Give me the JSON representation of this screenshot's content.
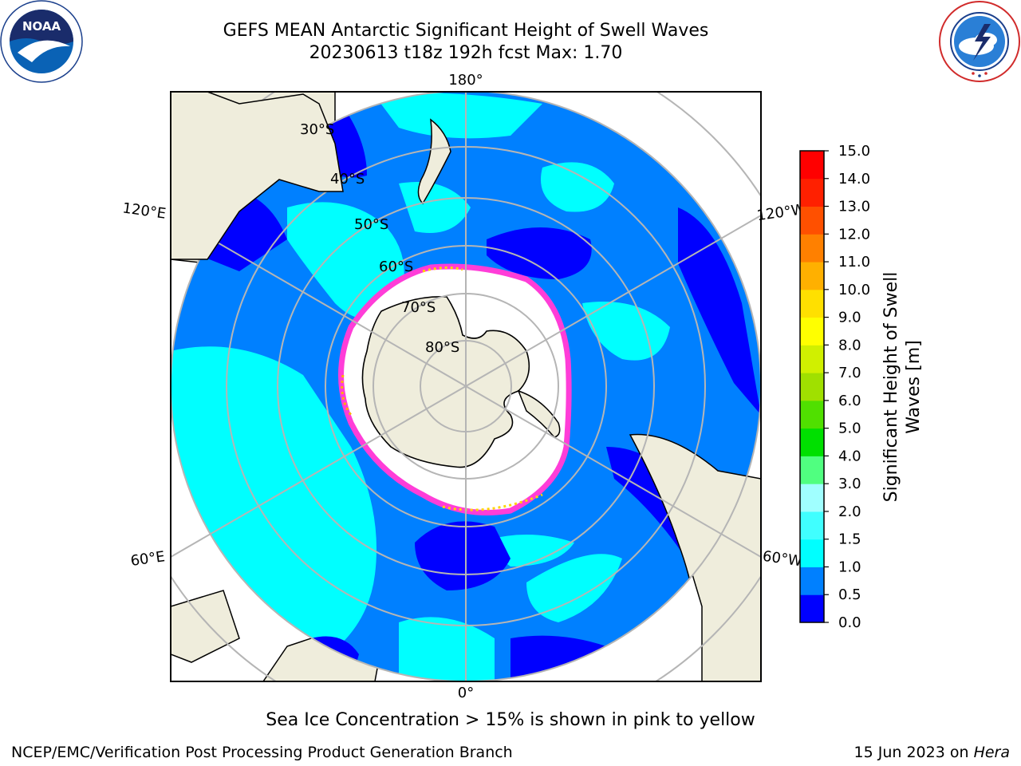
{
  "title": {
    "line1": "GEFS MEAN Antarctic Significant Height of Swell Waves",
    "line2": "20230613 t18z 192h fcst   Max: 1.70"
  },
  "logos": {
    "left": {
      "icon": "noaa-logo",
      "label": "NOAA",
      "ring_text": "NATIONAL OCEANIC AND ATMOSPHERIC ADMINISTRATION · U.S. DEPARTMENT OF COMMERCE"
    },
    "right": {
      "icon": "nws-logo",
      "ring_text": "NATIONAL WEATHER SERVICE"
    }
  },
  "map": {
    "projection": "south-polar-stereographic",
    "longitude_labels": [
      "180°",
      "120°E",
      "120°W",
      "60°E",
      "60°W",
      "0°"
    ],
    "latitude_labels": [
      "30°S",
      "40°S",
      "50°S",
      "60°S",
      "70°S",
      "80°S"
    ],
    "colors": {
      "land": "#efeddc",
      "sea_ice_open": "#ffffff",
      "ice_edge": "#ff3dd8",
      "gridlines": "#b5b5b5",
      "coastline": "#000000"
    }
  },
  "colorbar": {
    "label_line1": "Significant Height of Swell",
    "label_line2": "Waves [m]",
    "ticks": [
      "0.0",
      "0.5",
      "1.0",
      "1.5",
      "2.0",
      "3.0",
      "4.0",
      "5.0",
      "6.0",
      "7.0",
      "8.0",
      "9.0",
      "10.0",
      "11.0",
      "12.0",
      "13.0",
      "14.0",
      "15.0"
    ],
    "colors": [
      "#0000ff",
      "#0080ff",
      "#00ffff",
      "#40ffff",
      "#a0ffff",
      "#50ff80",
      "#00e000",
      "#50e000",
      "#a0e000",
      "#d0f000",
      "#ffff00",
      "#ffe000",
      "#ffb000",
      "#ff8000",
      "#ff5000",
      "#ff2000",
      "#ff0000"
    ]
  },
  "footer": {
    "ice_note": "Sea Ice Concentration > 15% is shown in pink to yellow",
    "branch": "NCEP/EMC/Verification Post Processing Product Generation Branch",
    "date": "15 Jun 2023 on ",
    "machine": "Hera"
  }
}
